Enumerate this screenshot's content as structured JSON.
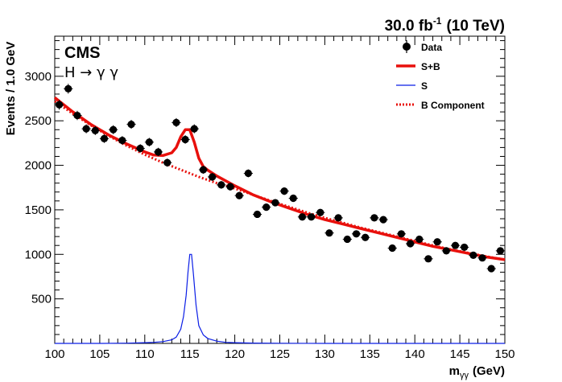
{
  "header": {
    "lumi_value": "30.0 fb",
    "lumi_exp": "-1",
    "lumi_energy": "(10 TeV)"
  },
  "labels": {
    "experiment": "CMS",
    "channel": "H → γ γ"
  },
  "chart_data": {
    "type": "scatter",
    "title": "",
    "xlabel_main": "m",
    "xlabel_sub": "γγ",
    "xlabel_unit": "(GeV)",
    "ylabel": "Events / 1.0 GeV",
    "xlim": [
      100,
      150
    ],
    "ylim": [
      0,
      3450
    ],
    "x_ticks": [
      100,
      105,
      110,
      115,
      120,
      125,
      130,
      135,
      140,
      145,
      150
    ],
    "y_ticks": [
      500,
      1000,
      1500,
      2000,
      2500,
      3000
    ],
    "grid": false,
    "legend_position": "top-right",
    "legend": [
      {
        "label": "Data",
        "style": "marker",
        "color": "#000000"
      },
      {
        "label": "S+B",
        "style": "thick-line",
        "color": "#e8100c"
      },
      {
        "label": "S",
        "style": "thin-line",
        "color": "#0b1ee6"
      },
      {
        "label": "B Component",
        "style": "dotted-line",
        "color": "#e8100c"
      }
    ],
    "series": [
      {
        "name": "Data",
        "x": [
          100.5,
          101.5,
          102.5,
          103.5,
          104.5,
          105.5,
          106.5,
          107.5,
          108.5,
          109.5,
          110.5,
          111.5,
          112.5,
          113.5,
          114.5,
          115.5,
          116.5,
          117.5,
          118.5,
          119.5,
          120.5,
          121.5,
          122.5,
          123.5,
          124.5,
          125.5,
          126.5,
          127.5,
          128.5,
          129.5,
          130.5,
          131.5,
          132.5,
          133.5,
          134.5,
          135.5,
          136.5,
          137.5,
          138.5,
          139.5,
          140.5,
          141.5,
          142.5,
          143.5,
          144.5,
          145.5,
          146.5,
          147.5,
          148.5,
          149.5
        ],
        "y": [
          2680,
          2860,
          2560,
          2410,
          2390,
          2300,
          2400,
          2280,
          2460,
          2190,
          2260,
          2150,
          2030,
          2480,
          2290,
          2410,
          1950,
          1870,
          1780,
          1760,
          1660,
          1910,
          1450,
          1530,
          1580,
          1710,
          1630,
          1420,
          1420,
          1470,
          1240,
          1410,
          1170,
          1230,
          1190,
          1410,
          1390,
          1070,
          1230,
          1120,
          1170,
          950,
          1140,
          1040,
          1100,
          1080,
          990,
          960,
          840,
          1040
        ],
        "yerr": [
          55,
          55,
          52,
          50,
          50,
          48,
          50,
          48,
          50,
          47,
          48,
          47,
          46,
          50,
          48,
          50,
          45,
          44,
          43,
          43,
          41,
          44,
          39,
          40,
          40,
          42,
          41,
          38,
          38,
          39,
          36,
          38,
          35,
          36,
          35,
          38,
          38,
          33,
          36,
          34,
          35,
          31,
          34,
          33,
          34,
          33,
          32,
          31,
          29,
          33
        ]
      },
      {
        "name": "S+B",
        "x": [
          100,
          102,
          104,
          106,
          108,
          110,
          111,
          112,
          113,
          113.5,
          114,
          114.5,
          115,
          115.5,
          116,
          116.5,
          117,
          118,
          120,
          122,
          124,
          126,
          128,
          130,
          132,
          134,
          136,
          138,
          140,
          142,
          144,
          146,
          148,
          150
        ],
        "y": [
          2760,
          2600,
          2460,
          2340,
          2240,
          2150,
          2115,
          2110,
          2140,
          2200,
          2320,
          2400,
          2400,
          2260,
          2080,
          1985,
          1945,
          1880,
          1770,
          1670,
          1590,
          1520,
          1450,
          1390,
          1340,
          1290,
          1240,
          1190,
          1140,
          1090,
          1050,
          1010,
          970,
          940
        ]
      },
      {
        "name": "S",
        "x": [
          100,
          105,
          108,
          110,
          111,
          112,
          113,
          113.5,
          114,
          114.3,
          114.6,
          114.8,
          115,
          115.2,
          115.4,
          115.7,
          116,
          116.5,
          117,
          118,
          119,
          120,
          122,
          125,
          130,
          150
        ],
        "y": [
          0,
          0,
          3,
          8,
          12,
          20,
          40,
          70,
          160,
          300,
          540,
          800,
          1000,
          1000,
          780,
          430,
          200,
          95,
          55,
          25,
          12,
          8,
          4,
          2,
          0,
          0
        ]
      },
      {
        "name": "B Component",
        "x": [
          100,
          102,
          104,
          106,
          108,
          110,
          112,
          114,
          116,
          118,
          120,
          122,
          124,
          126,
          128,
          130,
          132,
          134,
          136,
          138,
          140,
          142,
          144,
          146,
          148,
          150
        ],
        "y": [
          2720,
          2580,
          2450,
          2330,
          2220,
          2120,
          2030,
          1950,
          1870,
          1800,
          1740,
          1670,
          1600,
          1535,
          1470,
          1410,
          1355,
          1300,
          1250,
          1200,
          1150,
          1100,
          1055,
          1015,
          975,
          940
        ]
      }
    ]
  }
}
